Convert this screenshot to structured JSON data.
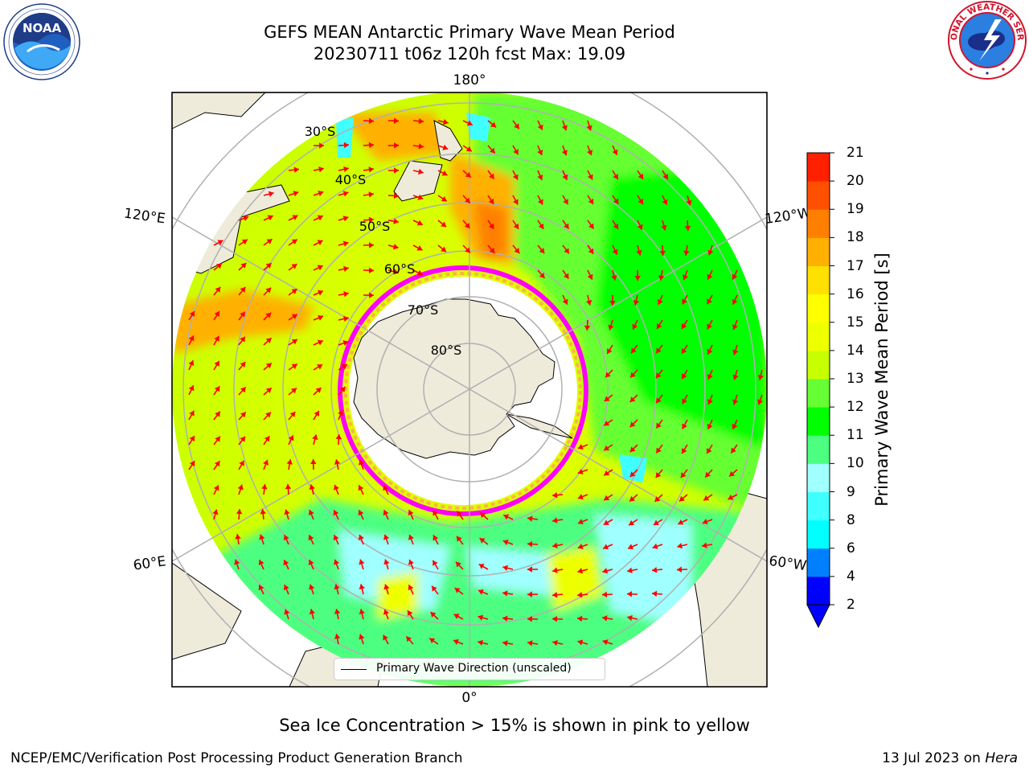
{
  "title": {
    "line1": "GEFS MEAN Antarctic Primary Wave Mean Period",
    "line2": "20230711 t06z 120h fcst   Max: 19.09"
  },
  "logos": {
    "left": {
      "icon": "noaa-logo-icon",
      "text": "NOAA"
    },
    "right": {
      "icon": "nws-logo-icon",
      "text": "NATIONAL WEATHER SERVICE"
    }
  },
  "map": {
    "longitude_labels": [
      "180°",
      "120°E",
      "120°W",
      "60°E",
      "60°W",
      "0°"
    ],
    "latitude_labels": [
      "30°S",
      "40°S",
      "50°S",
      "60°S",
      "70°S",
      "80°S"
    ],
    "legend_label": "Primary Wave Direction (unscaled)",
    "vector_color": "#ff0000",
    "land_color": "#efebdb",
    "ice_colors": [
      "#ff00ff",
      "#ffb347",
      "#ffff66"
    ]
  },
  "colorbar": {
    "label": "Primary Wave Mean Period [s]",
    "ticks": [
      "2",
      "4",
      "6",
      "8",
      "9",
      "10",
      "11",
      "12",
      "13",
      "14",
      "15",
      "16",
      "17",
      "18",
      "19",
      "20",
      "21"
    ],
    "colors": [
      "#0000ff",
      "#0080ff",
      "#00ffff",
      "#40ffff",
      "#a0ffff",
      "#4dff80",
      "#00ff00",
      "#66ff33",
      "#c8ff00",
      "#eeff00",
      "#ffff00",
      "#ffe000",
      "#ffb000",
      "#ff8000",
      "#ff5000",
      "#ff2000",
      "#ff0000"
    ],
    "extend_color": "#0000ff"
  },
  "caption": "Sea Ice Concentration > 15% is shown in pink to yellow",
  "footer": {
    "left": "NCEP/EMC/Verification Post Processing Product Generation Branch",
    "right_date": "13 Jul 2023 on ",
    "right_machine": "Hera"
  }
}
